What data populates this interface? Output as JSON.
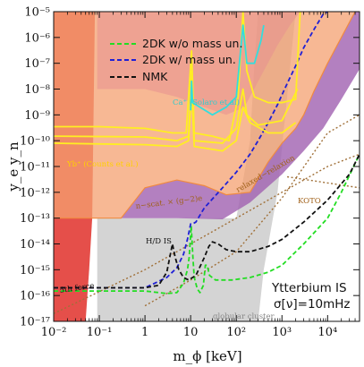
{
  "chart_data": {
    "type": "line",
    "xlabel": "m_ϕ [keV]",
    "ylabel": "y_e y_n",
    "xscale": "log",
    "yscale": "log",
    "xlim": [
      0.01,
      50000
    ],
    "ylim": [
      1e-17,
      1e-05
    ],
    "x_ticks": [
      {
        "label": "10⁻²",
        "value": 0.01
      },
      {
        "label": "10⁻¹",
        "value": 0.1
      },
      {
        "label": "1",
        "value": 1
      },
      {
        "label": "10",
        "value": 10
      },
      {
        "label": "10²",
        "value": 100
      },
      {
        "label": "10³",
        "value": 1000
      },
      {
        "label": "10⁴",
        "value": 10000
      }
    ],
    "y_ticks": [
      {
        "label": "10⁻¹⁷",
        "value": 1e-17
      },
      {
        "label": "10⁻¹⁶",
        "value": 1e-16
      },
      {
        "label": "10⁻¹⁵",
        "value": 1e-15
      },
      {
        "label": "10⁻¹⁴",
        "value": 1e-14
      },
      {
        "label": "10⁻¹³",
        "value": 1e-13
      },
      {
        "label": "10⁻¹²",
        "value": 1e-12
      },
      {
        "label": "10⁻¹¹",
        "value": 1e-11
      },
      {
        "label": "10⁻¹⁰",
        "value": 1e-10
      },
      {
        "label": "10⁻⁹",
        "value": 1e-09
      },
      {
        "label": "10⁻⁸",
        "value": 1e-08
      },
      {
        "label": "10⁻⁷",
        "value": 1e-07
      },
      {
        "label": "10⁻⁶",
        "value": 1e-06
      },
      {
        "label": "10⁻⁵",
        "value": 1e-05
      }
    ],
    "legend": {
      "placement": "top-center",
      "entries": [
        {
          "label": "2DK w/o mass un.",
          "color": "#22dd22"
        },
        {
          "label": "2DK w/ mass un.",
          "color": "#1f1fd6"
        },
        {
          "label": "NMK",
          "color": "#111111"
        }
      ]
    },
    "series": [
      {
        "name": "2DK w/o mass un.",
        "color": "#22dd22",
        "dash": "dashed",
        "points": [
          [
            0.01,
            1.5e-16
          ],
          [
            1,
            1.5e-16
          ],
          [
            3,
            1.2e-16
          ],
          [
            5,
            1.3e-16
          ],
          [
            7,
            3e-16
          ],
          [
            8.5,
            1e-15
          ],
          [
            9.3,
            3e-15
          ],
          [
            10.3,
            5e-14
          ],
          [
            11.2,
            3e-15
          ],
          [
            12,
            5e-16
          ],
          [
            14,
            1.8e-16
          ],
          [
            16,
            1.3e-16
          ],
          [
            19,
            2.5e-16
          ],
          [
            21,
            1.5e-15
          ],
          [
            23,
            1.5e-15
          ],
          [
            26,
            6e-16
          ],
          [
            35,
            4e-16
          ],
          [
            80,
            4e-16
          ],
          [
            200,
            5e-16
          ],
          [
            500,
            8e-16
          ],
          [
            1000,
            1.5e-15
          ],
          [
            3000,
            1e-14
          ],
          [
            10000,
            1e-13
          ],
          [
            20000,
            1e-12
          ],
          [
            50000,
            3e-11
          ]
        ]
      },
      {
        "name": "2DK w/ mass un.",
        "color": "#1f1fd6",
        "dash": "dashed",
        "points": [
          [
            0.01,
            2e-16
          ],
          [
            1,
            2e-16
          ],
          [
            3,
            5e-16
          ],
          [
            5,
            1.2e-15
          ],
          [
            7,
            4e-15
          ],
          [
            8.5,
            1.5e-14
          ],
          [
            10,
            6e-14
          ],
          [
            11,
            6e-14
          ],
          [
            13,
            7e-14
          ],
          [
            20,
            2.5e-13
          ],
          [
            50,
            1.5e-12
          ],
          [
            100,
            6e-12
          ],
          [
            200,
            3e-11
          ],
          [
            300,
            1e-10
          ],
          [
            500,
            5e-10
          ],
          [
            800,
            2.5e-09
          ],
          [
            1200,
            1.2e-08
          ],
          [
            2000,
            8e-08
          ],
          [
            3000,
            4e-07
          ],
          [
            5000,
            2e-06
          ],
          [
            8000,
            8e-06
          ],
          [
            10000,
            1e-05
          ]
        ]
      },
      {
        "name": "NMK",
        "color": "#111111",
        "dash": "dashed",
        "points": [
          [
            0.01,
            2e-16
          ],
          [
            1,
            2e-16
          ],
          [
            2,
            2.5e-16
          ],
          [
            3,
            8e-16
          ],
          [
            3.6,
            4e-15
          ],
          [
            4,
            1e-14
          ],
          [
            4.6,
            3e-15
          ],
          [
            5.5,
            1e-15
          ],
          [
            7,
            5e-16
          ],
          [
            9,
            4e-16
          ],
          [
            13,
            6e-16
          ],
          [
            20,
            3e-15
          ],
          [
            25,
            8e-15
          ],
          [
            30,
            1.2e-14
          ],
          [
            40,
            1e-14
          ],
          [
            60,
            6e-15
          ],
          [
            100,
            5e-15
          ],
          [
            200,
            5e-15
          ],
          [
            500,
            8e-15
          ],
          [
            1000,
            1.5e-14
          ],
          [
            3000,
            7e-14
          ],
          [
            10000,
            5e-13
          ],
          [
            30000,
            5e-12
          ],
          [
            50000,
            3e-11
          ]
        ]
      },
      {
        "name": "",
        "color": "#ffee22",
        "dash": "solid",
        "points": [
          [
            0.01,
            3.5e-10
          ],
          [
            0.1,
            3.5e-10
          ],
          [
            1,
            3e-10
          ],
          [
            4,
            2e-10
          ],
          [
            8,
            2e-10
          ],
          [
            10.5,
            3e-07
          ],
          [
            12,
            2e-10
          ],
          [
            30,
            1.5e-10
          ],
          [
            70,
            1e-10
          ],
          [
            110,
            5e-09
          ],
          [
            140,
            1e-05
          ],
          [
            170,
            5e-08
          ],
          [
            250,
            5e-09
          ],
          [
            500,
            3e-09
          ],
          [
            1000,
            3e-09
          ],
          [
            2000,
            4e-09
          ],
          [
            2500,
            1e-05
          ]
        ]
      },
      {
        "name": "",
        "color": "#ffee22",
        "dash": "solid",
        "points": [
          [
            0.01,
            1.5e-10
          ],
          [
            1,
            1.4e-10
          ],
          [
            5,
            1e-10
          ],
          [
            9,
            1.5e-10
          ],
          [
            10.6,
            5e-08
          ],
          [
            12,
            1e-10
          ],
          [
            50,
            8e-11
          ],
          [
            100,
            3e-10
          ],
          [
            140,
            1e-08
          ],
          [
            170,
            1e-09
          ],
          [
            300,
            4e-10
          ],
          [
            1000,
            6e-10
          ],
          [
            2200,
            1e-08
          ]
        ]
      },
      {
        "name": "",
        "color": "#ffee22",
        "dash": "solid",
        "points": [
          [
            0.01,
            8e-11
          ],
          [
            1,
            7e-11
          ],
          [
            5,
            6e-11
          ],
          [
            9,
            1e-10
          ],
          [
            10.5,
            1e-08
          ],
          [
            12,
            6e-11
          ],
          [
            50,
            4e-11
          ],
          [
            100,
            1e-10
          ],
          [
            140,
            2e-09
          ],
          [
            200,
            5e-10
          ],
          [
            500,
            2e-10
          ],
          [
            1000,
            2e-10
          ],
          [
            2000,
            5e-10
          ]
        ]
      },
      {
        "name": "",
        "color": "#33dddd",
        "dash": "solid",
        "points": [
          [
            10,
            1.5e-09
          ],
          [
            10.5,
            2e-08
          ],
          [
            11,
            3e-09
          ],
          [
            30,
            1e-09
          ],
          [
            60,
            2e-09
          ],
          [
            100,
            5e-09
          ],
          [
            140,
            3e-06
          ],
          [
            170,
            1e-07
          ],
          [
            250,
            1e-07
          ],
          [
            350,
            8e-07
          ],
          [
            400,
            3e-06
          ]
        ]
      }
    ],
    "regions": [
      {
        "name": "5th force",
        "color": "#e0302a"
      },
      {
        "name": "n-scat. × (g−2)e",
        "color": "#f4a070"
      },
      {
        "name": "H/D IS",
        "color": "#a060b0"
      },
      {
        "name": "globular cluster",
        "color": "#cfcfcf"
      },
      {
        "name": "Ca⁺ Solaro et al",
        "color": "#e89090"
      }
    ],
    "dotted_lines": [
      {
        "name": "relaxed relaxion",
        "color": "#a07038",
        "points": [
          [
            0.01,
            2e-17
          ],
          [
            1,
            1e-15
          ],
          [
            10,
            1e-14
          ],
          [
            100,
            1e-13
          ],
          [
            1000,
            1e-12
          ],
          [
            10000,
            1e-11
          ],
          [
            50000,
            3e-11
          ]
        ]
      },
      {
        "name": "",
        "color": "#a07038",
        "points": [
          [
            1,
            4e-17
          ],
          [
            10,
            4e-16
          ],
          [
            100,
            5e-15
          ],
          [
            1000,
            6e-13
          ],
          [
            10000,
            2e-10
          ],
          [
            50000,
            1e-09
          ]
        ]
      },
      {
        "name": "KOTO",
        "color": "#a07038",
        "points": [
          [
            1300,
            4e-12
          ],
          [
            50000,
            1.5e-12
          ]
        ]
      }
    ],
    "annotations": [
      {
        "text": "Ca⁺ (Solaro et al)",
        "color": "#33cccc"
      },
      {
        "text": "Yb⁺ (Counts et al.)",
        "color": "#ffd000"
      },
      {
        "text": "n−scat. × (g−2)e",
        "color": "#a06018"
      },
      {
        "text": "H/D IS",
        "color": "#111111"
      },
      {
        "text": "5th force",
        "color": "#111111"
      },
      {
        "text": "relaxed−relaxion",
        "color": "#a06018"
      },
      {
        "text": "KOTO",
        "color": "#a06018"
      },
      {
        "text": "globular cluster",
        "color": "#888888"
      }
    ],
    "corner_text": [
      "Ytterbium IS",
      "σ[ν]=10mHz"
    ]
  }
}
